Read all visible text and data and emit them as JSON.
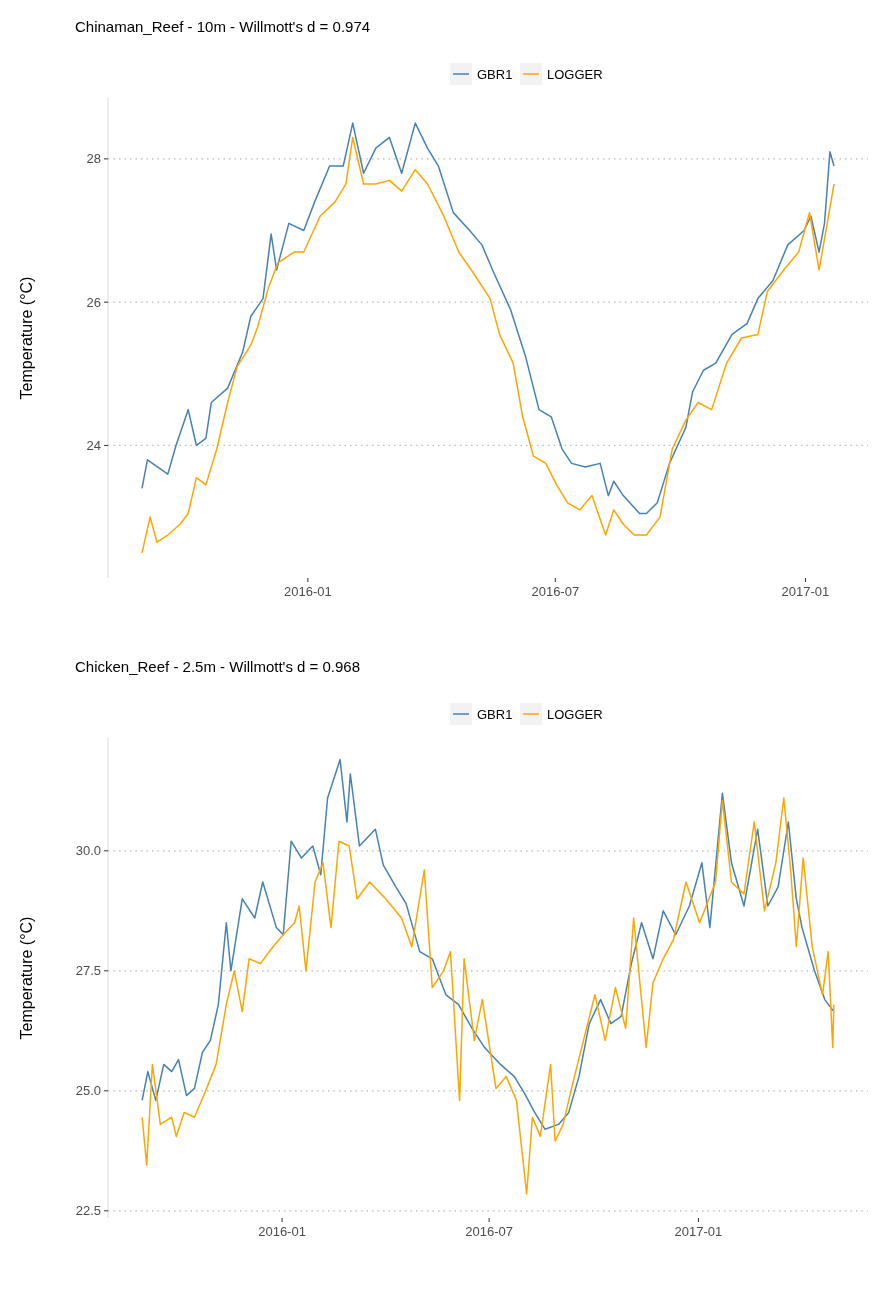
{
  "chart_data": [
    {
      "type": "line",
      "title": "Chinaman_Reef - 10m - Willmott's d = 0.974",
      "ylabel": "Temperature (°C)",
      "xlim": [
        "2015-08-07",
        "2017-02-16"
      ],
      "xticks": [
        {
          "value": "2016-01-01",
          "label": "2016-01"
        },
        {
          "value": "2016-07-01",
          "label": "2016-07"
        },
        {
          "value": "2017-01-01",
          "label": "2017-01"
        }
      ],
      "ylim": [
        22.15,
        28.85
      ],
      "yticks": [
        24,
        26,
        28
      ],
      "grid": "y",
      "legend": "top",
      "line_style": "solid",
      "series": [
        {
          "name": "GBR1",
          "color": "#4682b4",
          "x": [
            "2015-09-01",
            "2015-09-05",
            "2015-09-20",
            "2015-09-26",
            "2015-10-05",
            "2015-10-11",
            "2015-10-18",
            "2015-10-22",
            "2015-11-03",
            "2015-11-14",
            "2015-11-20",
            "2015-11-29",
            "2015-12-05",
            "2015-12-09",
            "2015-12-18",
            "2015-12-29",
            "2016-01-06",
            "2016-01-17",
            "2016-01-27",
            "2016-02-03",
            "2016-02-11",
            "2016-02-20",
            "2016-03-01",
            "2016-03-10",
            "2016-03-20",
            "2016-03-29",
            "2016-04-06",
            "2016-04-17",
            "2016-04-29",
            "2016-05-08",
            "2016-05-17",
            "2016-05-29",
            "2016-06-09",
            "2016-06-19",
            "2016-06-28",
            "2016-07-06",
            "2016-07-13",
            "2016-07-23",
            "2016-08-03",
            "2016-08-09",
            "2016-08-13",
            "2016-08-20",
            "2016-09-01",
            "2016-09-06",
            "2016-09-14",
            "2016-09-23",
            "2016-10-05",
            "2016-10-10",
            "2016-10-18",
            "2016-10-27",
            "2016-11-08",
            "2016-11-19",
            "2016-11-27",
            "2016-12-08",
            "2016-12-19",
            "2016-12-31",
            "2017-01-05",
            "2017-01-11",
            "2017-01-15",
            "2017-01-19",
            "2017-01-22"
          ],
          "values": [
            23.4,
            23.8,
            23.6,
            24.0,
            24.5,
            24.0,
            24.1,
            24.6,
            24.8,
            25.3,
            25.8,
            26.05,
            26.95,
            26.45,
            27.1,
            27.0,
            27.4,
            27.9,
            27.9,
            28.5,
            27.8,
            28.15,
            28.3,
            27.8,
            28.5,
            28.15,
            27.9,
            27.25,
            27.0,
            26.8,
            26.4,
            25.9,
            25.25,
            24.5,
            24.4,
            23.95,
            23.75,
            23.7,
            23.75,
            23.3,
            23.5,
            23.3,
            23.05,
            23.05,
            23.2,
            23.75,
            24.25,
            24.75,
            25.05,
            25.15,
            25.55,
            25.7,
            26.05,
            26.3,
            26.8,
            27.0,
            27.2,
            26.7,
            27.1,
            28.1,
            27.9
          ]
        },
        {
          "name": "LOGGER",
          "color": "#ffa500",
          "x": [
            "2015-09-01",
            "2015-09-07",
            "2015-09-12",
            "2015-09-20",
            "2015-09-29",
            "2015-10-05",
            "2015-10-11",
            "2015-10-18",
            "2015-10-26",
            "2015-11-03",
            "2015-11-10",
            "2015-11-20",
            "2015-11-25",
            "2015-12-03",
            "2015-12-10",
            "2015-12-22",
            "2015-12-29",
            "2016-01-10",
            "2016-01-21",
            "2016-01-29",
            "2016-02-03",
            "2016-02-11",
            "2016-02-20",
            "2016-03-01",
            "2016-03-10",
            "2016-03-20",
            "2016-03-29",
            "2016-04-10",
            "2016-04-21",
            "2016-05-02",
            "2016-05-14",
            "2016-05-21",
            "2016-05-31",
            "2016-06-07",
            "2016-06-15",
            "2016-06-24",
            "2016-07-02",
            "2016-07-10",
            "2016-07-19",
            "2016-07-28",
            "2016-08-07",
            "2016-08-13",
            "2016-08-20",
            "2016-08-28",
            "2016-09-06",
            "2016-09-16",
            "2016-09-25",
            "2016-10-05",
            "2016-10-14",
            "2016-10-24",
            "2016-11-04",
            "2016-11-15",
            "2016-11-27",
            "2016-12-04",
            "2016-12-16",
            "2016-12-27",
            "2017-01-04",
            "2017-01-11",
            "2017-01-17",
            "2017-01-22"
          ],
          "values": [
            22.5,
            23.0,
            22.65,
            22.75,
            22.9,
            23.05,
            23.55,
            23.45,
            23.95,
            24.6,
            25.1,
            25.4,
            25.65,
            26.2,
            26.55,
            26.7,
            26.7,
            27.2,
            27.4,
            27.65,
            28.3,
            27.65,
            27.65,
            27.7,
            27.55,
            27.85,
            27.65,
            27.2,
            26.7,
            26.4,
            26.05,
            25.55,
            25.15,
            24.4,
            23.85,
            23.75,
            23.45,
            23.2,
            23.1,
            23.3,
            22.75,
            23.1,
            22.9,
            22.75,
            22.75,
            23.0,
            23.95,
            24.35,
            24.6,
            24.5,
            25.15,
            25.5,
            25.55,
            26.15,
            26.45,
            26.7,
            27.25,
            26.45,
            27.1,
            27.65
          ]
        }
      ]
    },
    {
      "type": "line",
      "title": "Chicken_Reef - 2.5m - Willmott's d = 0.968",
      "ylabel": "Temperature (°C)",
      "xlim": [
        "2015-08-01",
        "2017-05-30"
      ],
      "xticks": [
        {
          "value": "2016-01-01",
          "label": "2016-01"
        },
        {
          "value": "2016-07-01",
          "label": "2016-07"
        },
        {
          "value": "2017-01-01",
          "label": "2017-01"
        }
      ],
      "ylim": [
        22.35,
        32.35
      ],
      "yticks": [
        {
          "value": 22.5,
          "label": "22.5"
        },
        {
          "value": 25,
          "label": "25.0"
        },
        {
          "value": 27.5,
          "label": "27.5"
        },
        {
          "value": 30,
          "label": "30.0"
        }
      ],
      "grid": "y",
      "legend": "top",
      "line_style": "solid",
      "series": [
        {
          "name": "GBR1",
          "color": "#4682b4",
          "x": [
            "2015-08-31",
            "2015-09-05",
            "2015-09-12",
            "2015-09-19",
            "2015-09-26",
            "2015-10-02",
            "2015-10-09",
            "2015-10-16",
            "2015-10-23",
            "2015-10-30",
            "2015-11-06",
            "2015-11-13",
            "2015-11-17",
            "2015-11-27",
            "2015-12-08",
            "2015-12-15",
            "2015-12-27",
            "2016-01-02",
            "2016-01-09",
            "2016-01-18",
            "2016-01-28",
            "2016-02-04",
            "2016-02-10",
            "2016-02-21",
            "2016-02-27",
            "2016-03-01",
            "2016-03-09",
            "2016-03-23",
            "2016-03-30",
            "2016-04-10",
            "2016-04-19",
            "2016-05-01",
            "2016-05-12",
            "2016-05-24",
            "2016-06-04",
            "2016-06-16",
            "2016-06-27",
            "2016-07-11",
            "2016-07-23",
            "2016-08-01",
            "2016-08-10",
            "2016-08-19",
            "2016-08-31",
            "2016-09-09",
            "2016-09-18",
            "2016-09-27",
            "2016-10-07",
            "2016-10-16",
            "2016-10-25",
            "2016-11-03",
            "2016-11-12",
            "2016-11-22",
            "2016-12-01",
            "2016-12-12",
            "2016-12-24",
            "2017-01-04",
            "2017-01-11",
            "2017-01-22",
            "2017-01-30",
            "2017-02-10",
            "2017-02-22",
            "2017-03-03",
            "2017-03-12",
            "2017-03-21",
            "2017-03-28",
            "2017-04-02",
            "2017-04-13",
            "2017-04-22",
            "2017-04-30"
          ],
          "values": [
            24.8,
            25.4,
            24.8,
            25.55,
            25.4,
            25.65,
            24.9,
            25.05,
            25.8,
            26.05,
            26.8,
            28.5,
            27.5,
            29.0,
            28.6,
            29.35,
            28.4,
            28.25,
            30.2,
            29.85,
            30.1,
            29.5,
            31.1,
            31.9,
            30.6,
            31.6,
            30.1,
            30.45,
            29.7,
            29.25,
            28.9,
            27.9,
            27.75,
            27.0,
            26.8,
            26.3,
            25.9,
            25.55,
            25.3,
            24.95,
            24.55,
            24.2,
            24.3,
            24.55,
            25.3,
            26.4,
            26.9,
            26.4,
            26.55,
            27.65,
            28.5,
            27.75,
            28.75,
            28.25,
            28.85,
            29.75,
            28.4,
            31.2,
            29.75,
            28.85,
            30.45,
            28.85,
            29.25,
            30.6,
            29.0,
            28.4,
            27.5,
            26.9,
            26.65
          ]
        },
        {
          "name": "LOGGER",
          "color": "#ffa500",
          "x": [
            "2015-08-31",
            "2015-09-04",
            "2015-09-09",
            "2015-09-16",
            "2015-09-26",
            "2015-09-30",
            "2015-10-07",
            "2015-10-16",
            "2015-10-25",
            "2015-11-04",
            "2015-11-13",
            "2015-11-20",
            "2015-11-27",
            "2015-12-03",
            "2015-12-13",
            "2015-12-24",
            "2016-01-02",
            "2016-01-12",
            "2016-01-16",
            "2016-01-22",
            "2016-01-30",
            "2016-02-06",
            "2016-02-13",
            "2016-02-20",
            "2016-02-29",
            "2016-03-07",
            "2016-03-18",
            "2016-04-01",
            "2016-04-15",
            "2016-04-24",
            "2016-05-05",
            "2016-05-12",
            "2016-05-22",
            "2016-05-28",
            "2016-06-05",
            "2016-06-09",
            "2016-06-18",
            "2016-06-25",
            "2016-07-07",
            "2016-07-16",
            "2016-07-25",
            "2016-08-03",
            "2016-08-08",
            "2016-08-15",
            "2016-08-24",
            "2016-08-28",
            "2016-09-04",
            "2016-09-14",
            "2016-09-23",
            "2016-10-02",
            "2016-10-11",
            "2016-10-20",
            "2016-10-29",
            "2016-11-05",
            "2016-11-16",
            "2016-11-22",
            "2016-12-01",
            "2016-12-10",
            "2016-12-21",
            "2017-01-02",
            "2017-01-16",
            "2017-01-22",
            "2017-01-30",
            "2017-02-10",
            "2017-02-19",
            "2017-02-28",
            "2017-03-10",
            "2017-03-17",
            "2017-03-23",
            "2017-03-28",
            "2017-04-03",
            "2017-04-11",
            "2017-04-20",
            "2017-04-25",
            "2017-04-29",
            "2017-04-30"
          ],
          "values": [
            24.45,
            23.45,
            25.55,
            24.3,
            24.45,
            24.05,
            24.55,
            24.45,
            24.95,
            25.55,
            26.8,
            27.5,
            26.65,
            27.75,
            27.65,
            28.0,
            28.25,
            28.5,
            28.85,
            27.5,
            29.35,
            29.75,
            28.4,
            30.2,
            30.1,
            29.0,
            29.35,
            29.0,
            28.6,
            28.0,
            29.6,
            27.15,
            27.5,
            27.9,
            24.8,
            27.75,
            26.05,
            26.9,
            25.05,
            25.3,
            24.8,
            22.85,
            24.45,
            24.05,
            25.55,
            23.95,
            24.3,
            25.3,
            26.15,
            27.0,
            26.05,
            27.15,
            26.3,
            28.6,
            25.9,
            27.25,
            27.75,
            28.15,
            29.35,
            28.5,
            29.35,
            31.05,
            29.35,
            29.1,
            30.6,
            28.75,
            29.75,
            31.1,
            29.6,
            28.0,
            29.85,
            28.0,
            27.0,
            27.9,
            25.9,
            26.8
          ]
        }
      ]
    }
  ]
}
